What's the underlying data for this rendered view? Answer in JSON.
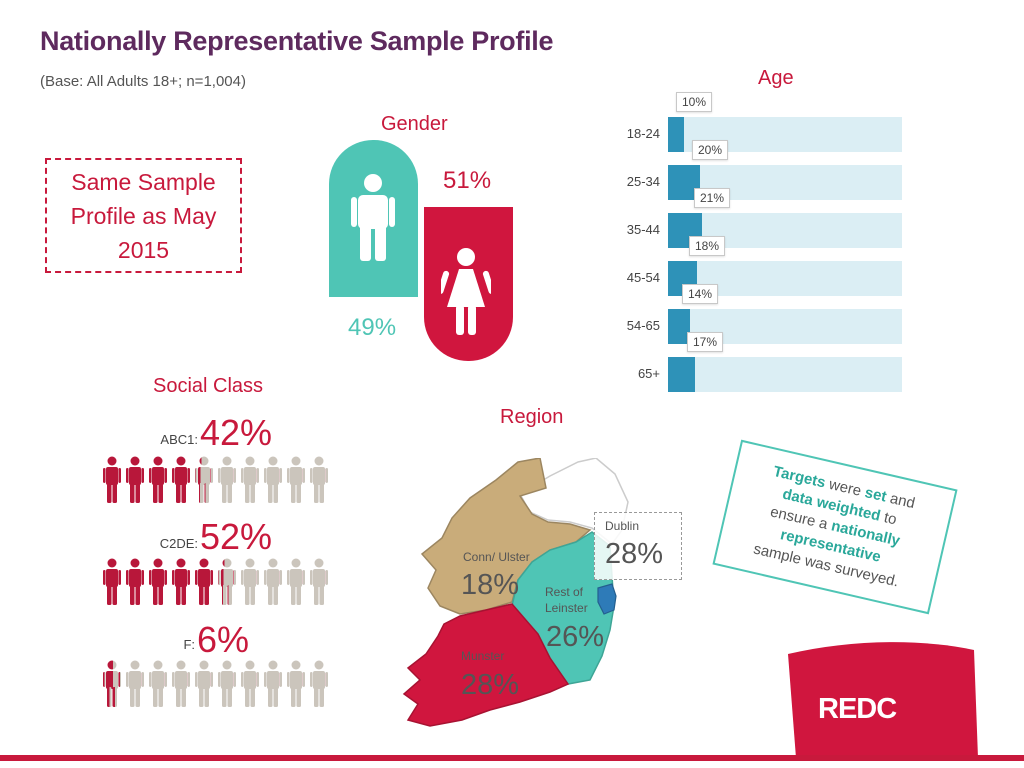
{
  "title": "Nationally Representative Sample Profile",
  "base": "(Base: All Adults 18+; n=1,004)",
  "same_sample": "Same Sample Profile as May 2015",
  "gender": {
    "title": "Gender",
    "male_pct": "49%",
    "female_pct": "51%",
    "colors": {
      "male": "#4fc5b5",
      "female": "#d0163e"
    }
  },
  "age": {
    "title": "Age"
  },
  "social_class": {
    "title": "Social Class",
    "groups": [
      {
        "label": "ABC1:",
        "pct": "42%"
      },
      {
        "label": "C2DE:",
        "pct": "52%"
      },
      {
        "label": "F:",
        "pct": "6%"
      }
    ]
  },
  "region": {
    "title": "Region",
    "areas": [
      {
        "label": "Conn/ Ulster",
        "pct": "18%"
      },
      {
        "label": "Rest of Leinster",
        "pct": "26%"
      },
      {
        "label": "Munster",
        "pct": "28%"
      },
      {
        "label": "Dublin",
        "pct": "28%"
      }
    ]
  },
  "targets_note": {
    "lines": [
      [
        "Targets",
        " were ",
        "set",
        " and"
      ],
      [
        "data weighted",
        " to"
      ],
      [
        "ensure a ",
        "nationally"
      ],
      [
        "representative"
      ],
      [
        "sample was surveyed."
      ]
    ]
  },
  "brand": "REDC",
  "colors": {
    "accent": "#c8193c",
    "teal": "#4fc5b5",
    "bar": "#2e92b8",
    "bar_track": "#dbeef4",
    "title": "#5e2a5e"
  },
  "chart_data": [
    {
      "type": "bar",
      "orientation": "horizontal",
      "title": "Age",
      "categories": [
        "18-24",
        "25-34",
        "35-44",
        "45-54",
        "54-65",
        "65+"
      ],
      "values": [
        10,
        20,
        21,
        18,
        14,
        17
      ],
      "data_labels": [
        "10%",
        "20%",
        "21%",
        "18%",
        "14%",
        "17%"
      ],
      "xlim": [
        0,
        100
      ],
      "unit": "%",
      "grid": false,
      "legend": "none"
    },
    {
      "type": "pictogram",
      "title": "Social Class",
      "categories": [
        "ABC1:",
        "C2DE:",
        "F:"
      ],
      "values": [
        42,
        52,
        6
      ],
      "icons_per_row": 10
    },
    {
      "type": "pie",
      "title": "Gender",
      "categories": [
        "Male",
        "Female"
      ],
      "values": [
        49,
        51
      ]
    },
    {
      "type": "map",
      "title": "Region",
      "categories": [
        "Conn/ Ulster",
        "Rest of Leinster",
        "Munster",
        "Dublin"
      ],
      "values": [
        18,
        26,
        28,
        28
      ]
    }
  ]
}
